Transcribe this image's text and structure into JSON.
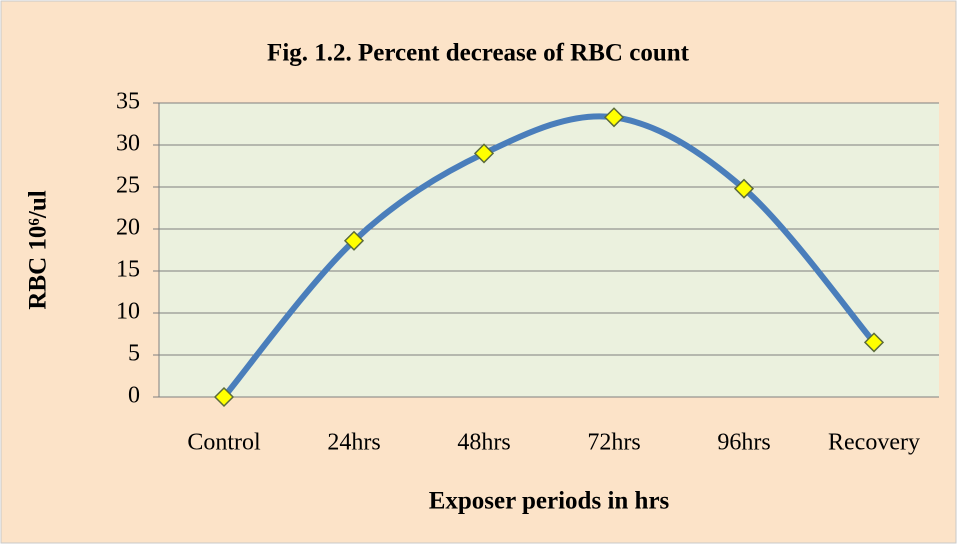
{
  "chart_data": {
    "type": "line",
    "title": "Fig. 1.2. Percent decrease of RBC count",
    "x_label": "Exposer periods in hrs",
    "y_label": "RBC 10⁶/ul",
    "categories": [
      "Control",
      "24hrs",
      "48hrs",
      "72hrs",
      "96hrs",
      "Recovery"
    ],
    "values": [
      0,
      18.6,
      29,
      33.3,
      24.8,
      6.5
    ],
    "color": "#4a7ebb",
    "marker_color": "#ffff00",
    "smooth": true,
    "ylim": [
      0,
      35
    ],
    "yticks": [
      0,
      5,
      10,
      15,
      20,
      25,
      30,
      35
    ],
    "grid": true
  }
}
